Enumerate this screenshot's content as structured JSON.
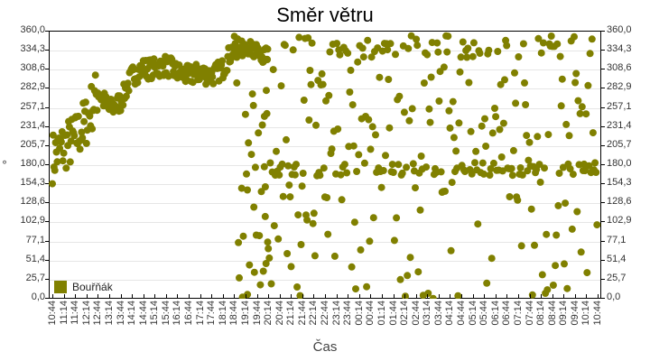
{
  "chart_data": {
    "type": "scatter",
    "title": "Směr větru",
    "xlabel": "Čas",
    "ylabel": "°",
    "ylim": [
      0,
      360
    ],
    "y_ticks": [
      "0,0",
      "25,7",
      "51,4",
      "77,1",
      "102,9",
      "128,6",
      "154,3",
      "180,0",
      "205,7",
      "231,4",
      "257,1",
      "282,9",
      "308,6",
      "334,3",
      "360,0"
    ],
    "x_ticks": [
      "10:44",
      "11:14",
      "11:44",
      "12:14",
      "12:44",
      "13:14",
      "13:44",
      "14:14",
      "14:44",
      "15:14",
      "15:44",
      "16:14",
      "16:44",
      "17:14",
      "17:44",
      "18:14",
      "18:44",
      "19:14",
      "19:44",
      "20:14",
      "20:44",
      "21:14",
      "21:44",
      "22:14",
      "22:44",
      "23:14",
      "23:44",
      "00:14",
      "00:44",
      "01:14",
      "01:44",
      "02:14",
      "02:44",
      "03:14",
      "03:44",
      "04:14",
      "04:44",
      "05:14",
      "05:44",
      "06:14",
      "06:44",
      "07:14",
      "07:44",
      "08:14",
      "08:44",
      "09:14",
      "09:44",
      "10:14",
      "10:44"
    ],
    "grid": true,
    "legend_position": "bottom-left inside",
    "series": [
      {
        "name": "Bouřňák",
        "color": "#808000",
        "description": "Wind direction samples. 10:44–18:40 a coherent trend rising from ~180° to ~300–310°, then ~330–345° around 18:40–20:30; after ~18:40 highly scattered across 0–360° with dense bands near ~180° and ~330–350°.",
        "trend_points": [
          {
            "x": "10:44",
            "y": 190
          },
          {
            "x": "11:14",
            "y": 205
          },
          {
            "x": "11:44",
            "y": 215
          },
          {
            "x": "12:14",
            "y": 240
          },
          {
            "x": "12:44",
            "y": 280
          },
          {
            "x": "13:14",
            "y": 255
          },
          {
            "x": "13:44",
            "y": 265
          },
          {
            "x": "14:14",
            "y": 300
          },
          {
            "x": "14:44",
            "y": 310
          },
          {
            "x": "15:14",
            "y": 310
          },
          {
            "x": "15:44",
            "y": 315
          },
          {
            "x": "16:14",
            "y": 305
          },
          {
            "x": "16:44",
            "y": 300
          },
          {
            "x": "17:14",
            "y": 305
          },
          {
            "x": "17:44",
            "y": 300
          },
          {
            "x": "18:14",
            "y": 310
          },
          {
            "x": "18:44",
            "y": 340
          },
          {
            "x": "19:14",
            "y": 330
          },
          {
            "x": "19:44",
            "y": 330
          },
          {
            "x": "20:14",
            "y": 325
          }
        ]
      }
    ]
  },
  "legend": {
    "label": "Bouřňák",
    "color": "#808000"
  }
}
